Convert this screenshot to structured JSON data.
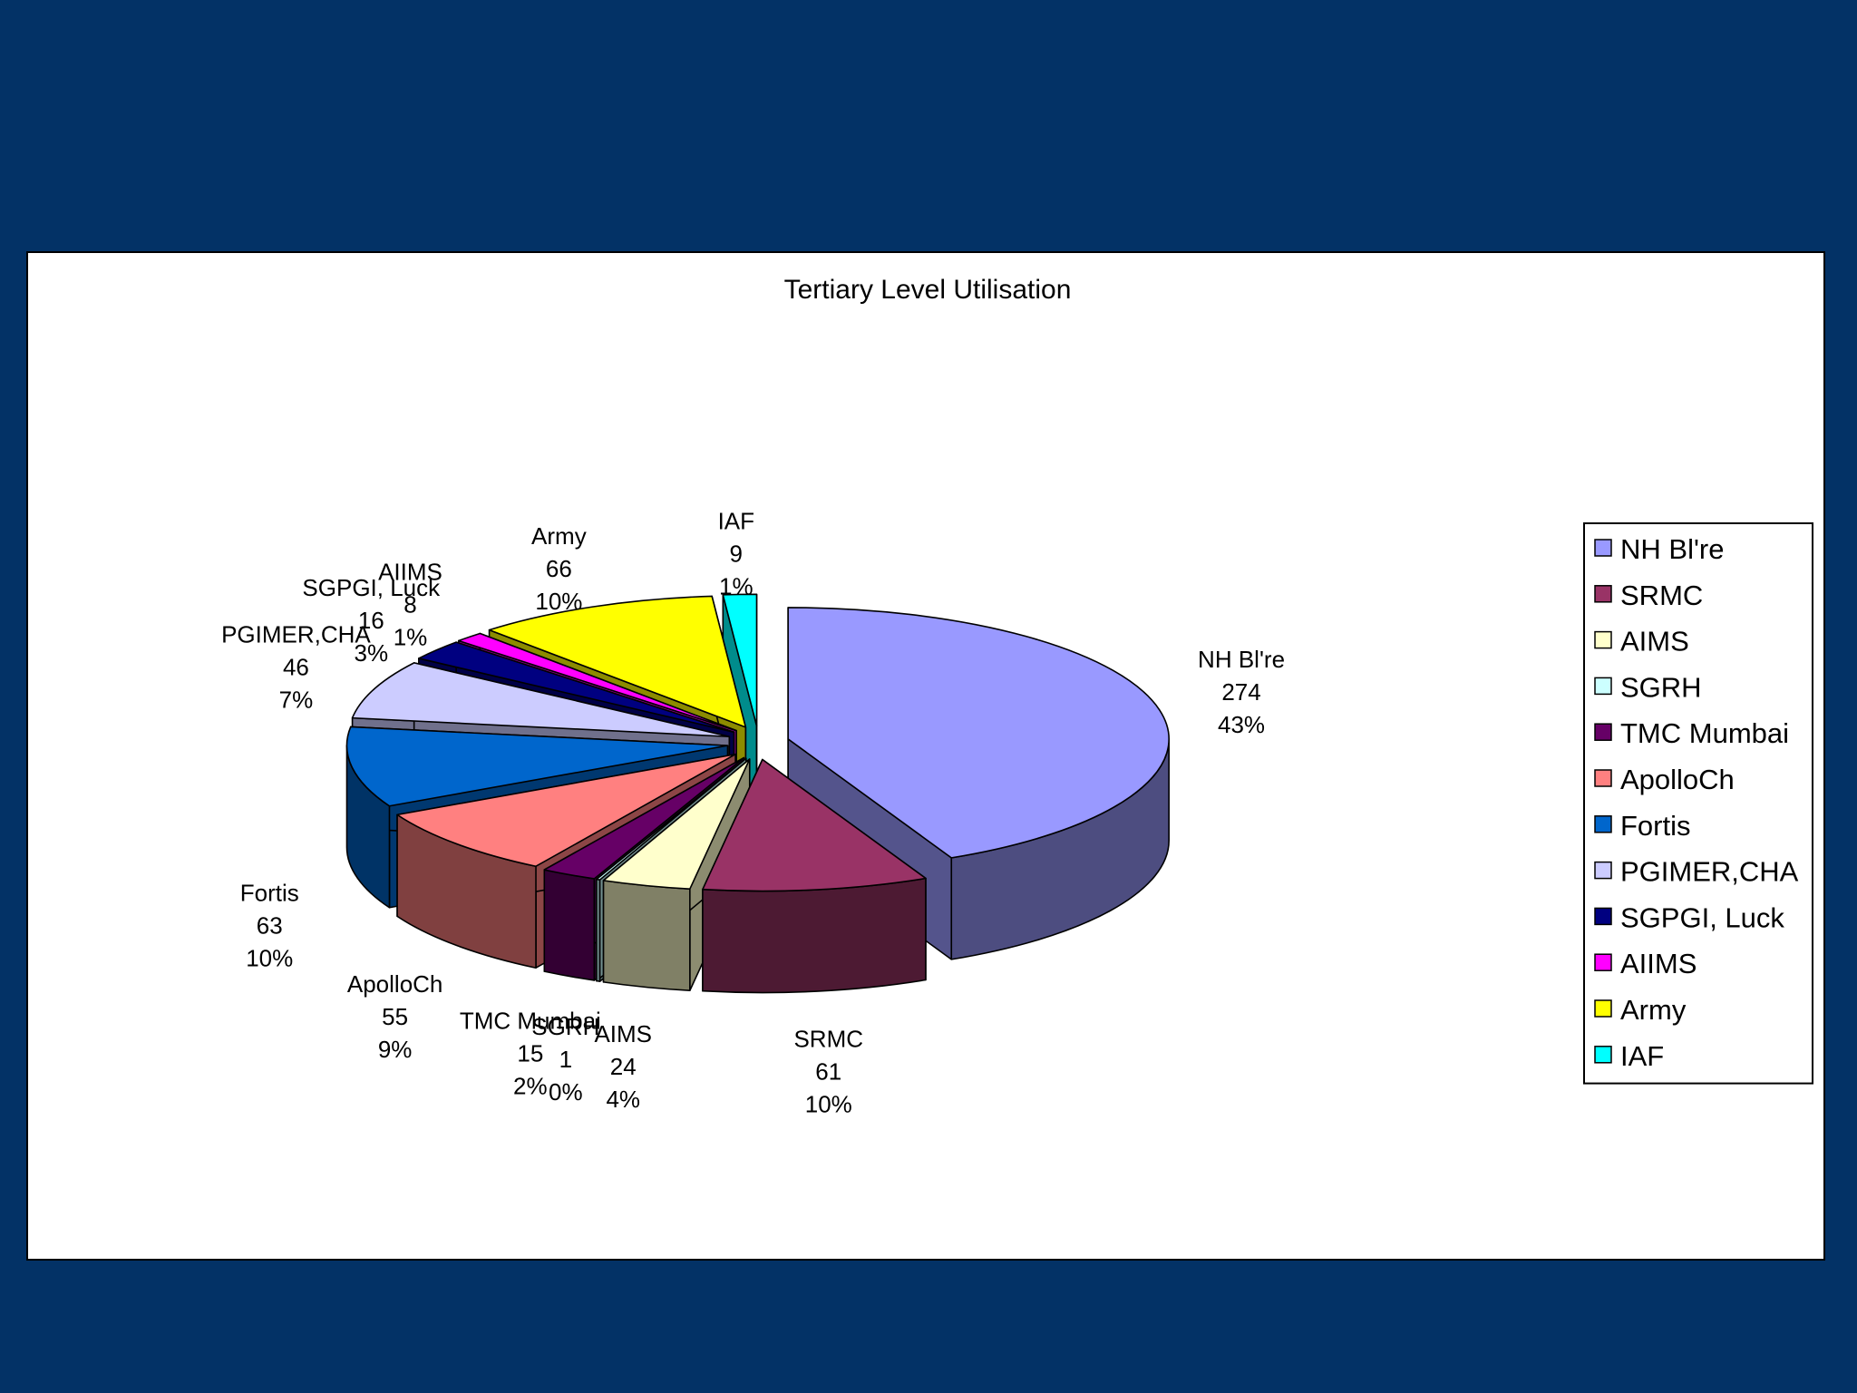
{
  "chart_data": {
    "type": "pie",
    "title": "Tertiary Level Utilisation",
    "three_d": true,
    "exploded": true,
    "legend_position": "right",
    "slices": [
      {
        "name": "NH Bl're",
        "value": 274,
        "percent": "43%",
        "color": "#9999FF"
      },
      {
        "name": "SRMC",
        "value": 61,
        "percent": "10%",
        "color": "#993366"
      },
      {
        "name": "AIMS",
        "value": 24,
        "percent": "4%",
        "color": "#FFFFCC"
      },
      {
        "name": "SGRH",
        "value": 1,
        "percent": "0%",
        "color": "#CCFFFF"
      },
      {
        "name": "TMC Mumbai",
        "value": 15,
        "percent": "2%",
        "color": "#660066"
      },
      {
        "name": "ApolloCh",
        "value": 55,
        "percent": "9%",
        "color": "#FF8080"
      },
      {
        "name": "Fortis",
        "value": 63,
        "percent": "10%",
        "color": "#0066CC"
      },
      {
        "name": "PGIMER,CHA",
        "value": 46,
        "percent": "7%",
        "color": "#CCCCFF"
      },
      {
        "name": "SGPGI, Luck",
        "value": 16,
        "percent": "3%",
        "color": "#000080"
      },
      {
        "name": "AIIMS",
        "value": 8,
        "percent": "1%",
        "color": "#FF00FF"
      },
      {
        "name": "Army",
        "value": 66,
        "percent": "10%",
        "color": "#FFFF00"
      },
      {
        "name": "IAF",
        "value": 9,
        "percent": "1%",
        "color": "#00FFFF"
      }
    ]
  }
}
